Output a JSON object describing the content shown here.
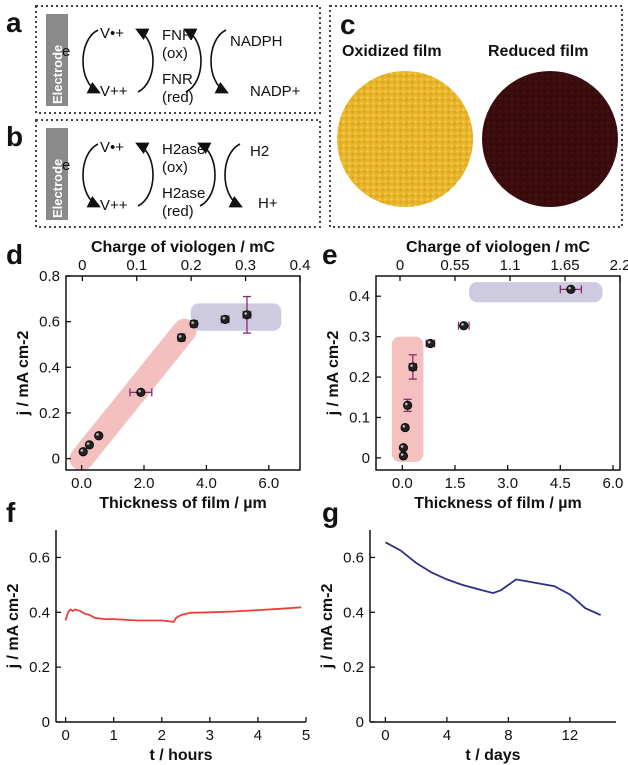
{
  "panels": {
    "a": {
      "label": "a",
      "electrode": "Electrode",
      "electron": "e",
      "v_ox": "V•+",
      "v_red": "V++",
      "enzyme_ox_1": "FNR",
      "enzyme_ox_2": "(ox)",
      "enzyme_red_1": "FNR",
      "enzyme_red_2": "(red)",
      "product_top": "NADPH",
      "product_bottom": "NADP+"
    },
    "b": {
      "label": "b",
      "electrode": "Electrode",
      "electron": "e",
      "v_ox": "V•+",
      "v_red": "V++",
      "enzyme_ox_1": "H2ase",
      "enzyme_ox_2": "(ox)",
      "enzyme_red_1": "H2ase",
      "enzyme_red_2": "(red)",
      "product_top": "H2",
      "product_bottom": "H+"
    },
    "c": {
      "label": "c",
      "oxidized_title": "Oxidized film",
      "reduced_title": "Reduced film",
      "oxidized_color": "#e8b52a",
      "reduced_color": "#3a0c0e"
    },
    "d": {
      "label": "d"
    },
    "e": {
      "label": "e"
    },
    "f": {
      "label": "f"
    },
    "g": {
      "label": "g"
    }
  },
  "chart_data": [
    {
      "id": "d",
      "type": "scatter",
      "xlabel": "Thickness of film / µm",
      "x2label": "Charge of viologen / mC",
      "ylabel": "j / mA cm-2",
      "xlim": [
        -0.5,
        7.0
      ],
      "ylim": [
        -0.05,
        0.8
      ],
      "x2lim": [
        -0.03,
        0.4
      ],
      "xticks": [
        "0.0",
        "2.0",
        "4.0",
        "6.0"
      ],
      "xtick_values": [
        0,
        2,
        4,
        6
      ],
      "yticks": [
        "0",
        "0.2",
        "0.4",
        "0.6",
        "0.8"
      ],
      "ytick_values": [
        0,
        0.2,
        0.4,
        0.6,
        0.8
      ],
      "x2ticks": [
        "0",
        "0.1",
        "0.2",
        "0.3",
        "0.4"
      ],
      "x2tick_values": [
        0,
        0.1,
        0.2,
        0.3,
        0.4
      ],
      "points": [
        {
          "x": 0.05,
          "y": 0.03,
          "xerr": 0.05,
          "yerr": 0.0
        },
        {
          "x": 0.25,
          "y": 0.06,
          "xerr": 0.05,
          "yerr": 0.0
        },
        {
          "x": 0.55,
          "y": 0.1,
          "xerr": 0.05,
          "yerr": 0.0
        },
        {
          "x": 1.9,
          "y": 0.29,
          "xerr": 0.35,
          "yerr": 0.0
        },
        {
          "x": 3.2,
          "y": 0.53,
          "xerr": 0.1,
          "yerr": 0.015
        },
        {
          "x": 3.6,
          "y": 0.59,
          "xerr": 0.1,
          "yerr": 0.0
        },
        {
          "x": 4.6,
          "y": 0.61,
          "xerr": 0.12,
          "yerr": 0.0
        },
        {
          "x": 5.3,
          "y": 0.63,
          "xerr": 0.12,
          "yerr": 0.08
        }
      ],
      "regions": [
        {
          "kind": "diagonal",
          "color": "#f2b6b4",
          "x1": 0.0,
          "y1": 0.0,
          "x2": 3.3,
          "y2": 0.56
        },
        {
          "kind": "box",
          "color": "#c6c2db",
          "x1": 3.5,
          "y1": 0.56,
          "x2": 6.4,
          "y2": 0.68
        }
      ]
    },
    {
      "id": "e",
      "type": "scatter",
      "xlabel": "Thickness of film / µm",
      "x2label": "Charge of viologen / mC",
      "ylabel": "j / mA cm-2",
      "xlim": [
        -0.75,
        6.2
      ],
      "ylim": [
        -0.03,
        0.45
      ],
      "x2lim": [
        -0.24,
        2.2
      ],
      "xticks": [
        "0.0",
        "1.5",
        "3.0",
        "4.5",
        "6.0"
      ],
      "xtick_values": [
        0,
        1.5,
        3,
        4.5,
        6
      ],
      "yticks": [
        "0",
        "0.1",
        "0.2",
        "0.3",
        "0.4"
      ],
      "ytick_values": [
        0,
        0.1,
        0.2,
        0.3,
        0.4
      ],
      "x2ticks": [
        "0",
        "0.55",
        "1.1",
        "1.65",
        "2.2"
      ],
      "x2tick_values": [
        0,
        0.55,
        1.1,
        1.65,
        2.2
      ],
      "points": [
        {
          "x": 0.03,
          "y": 0.005,
          "xerr": 0.03,
          "yerr": 0.0
        },
        {
          "x": 0.03,
          "y": 0.025,
          "xerr": 0.03,
          "yerr": 0.0
        },
        {
          "x": 0.08,
          "y": 0.075,
          "xerr": 0.04,
          "yerr": 0.0
        },
        {
          "x": 0.15,
          "y": 0.13,
          "xerr": 0.05,
          "yerr": 0.015
        },
        {
          "x": 0.3,
          "y": 0.225,
          "xerr": 0.1,
          "yerr": 0.03
        },
        {
          "x": 0.8,
          "y": 0.283,
          "xerr": 0.12,
          "yerr": 0.0
        },
        {
          "x": 1.75,
          "y": 0.327,
          "xerr": 0.15,
          "yerr": 0.0
        },
        {
          "x": 4.8,
          "y": 0.417,
          "xerr": 0.3,
          "yerr": 0.0
        }
      ],
      "regions": [
        {
          "kind": "box",
          "color": "#f2b6b4",
          "x1": -0.3,
          "y1": -0.01,
          "x2": 0.6,
          "y2": 0.3
        },
        {
          "kind": "box",
          "color": "#c6c2db",
          "x1": 1.9,
          "y1": 0.385,
          "x2": 5.7,
          "y2": 0.435
        }
      ]
    },
    {
      "id": "f",
      "type": "line",
      "xlabel": "t / hours",
      "ylabel": "j / mA cm-2",
      "xlim": [
        -0.2,
        5.0
      ],
      "ylim": [
        0,
        0.7
      ],
      "xticks": [
        "0",
        "1",
        "2",
        "3",
        "4",
        "5"
      ],
      "xtick_values": [
        0,
        1,
        2,
        3,
        4,
        5
      ],
      "yticks": [
        "0",
        "0.2",
        "0.4",
        "0.6"
      ],
      "ytick_values": [
        0,
        0.2,
        0.4,
        0.6
      ],
      "series": [
        {
          "color": "#e8413a",
          "x": [
            0.0,
            0.05,
            0.1,
            0.15,
            0.2,
            0.3,
            0.4,
            0.5,
            0.6,
            0.8,
            1.0,
            1.5,
            2.0,
            2.25,
            2.3,
            2.4,
            2.6,
            3.0,
            3.5,
            4.0,
            4.5,
            4.9
          ],
          "y": [
            0.37,
            0.4,
            0.41,
            0.405,
            0.41,
            0.405,
            0.395,
            0.39,
            0.38,
            0.375,
            0.375,
            0.37,
            0.37,
            0.365,
            0.38,
            0.39,
            0.398,
            0.4,
            0.403,
            0.408,
            0.413,
            0.418
          ]
        }
      ]
    },
    {
      "id": "g",
      "type": "line",
      "xlabel": "t / days",
      "ylabel": "j / mA cm-2",
      "xlim": [
        -1.0,
        15.0
      ],
      "ylim": [
        0,
        0.7
      ],
      "xticks": [
        "0",
        "4",
        "8",
        "12"
      ],
      "xtick_values": [
        0,
        4,
        8,
        12
      ],
      "yticks": [
        "0",
        "0.2",
        "0.4",
        "0.6"
      ],
      "ytick_values": [
        0,
        0.2,
        0.4,
        0.6
      ],
      "series": [
        {
          "color": "#2e2e86",
          "x": [
            0,
            1,
            2,
            3,
            4,
            5,
            6,
            7,
            7.5,
            8,
            8.5,
            9,
            10,
            11,
            12,
            13,
            14
          ],
          "y": [
            0.655,
            0.625,
            0.58,
            0.545,
            0.52,
            0.5,
            0.485,
            0.47,
            0.48,
            0.5,
            0.52,
            0.515,
            0.505,
            0.495,
            0.465,
            0.415,
            0.39
          ]
        }
      ]
    }
  ]
}
